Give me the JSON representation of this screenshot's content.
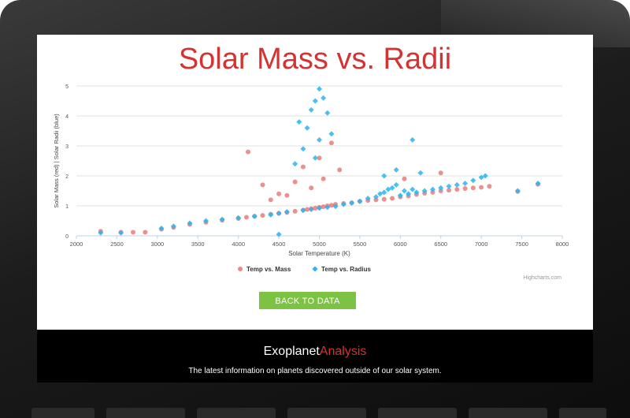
{
  "page": {
    "title": "Solar Mass vs. Radii",
    "back_label": "BACK TO DATA",
    "credits": "Highcharts.com"
  },
  "footer": {
    "brand_main": "Exoplanet",
    "brand_accent": "Analysis",
    "tagline": "The latest information on planets discovered outside of our solar system."
  },
  "colors": {
    "title": "#d53232",
    "mass_series": "#e86a6a",
    "radius_series": "#29b5f2",
    "button": "#7cc243"
  },
  "chart_data": {
    "type": "scatter",
    "title": "",
    "xlabel": "Solar Temperature (K)",
    "ylabel": "Solar Mass (red) | Solar Radii (blue)",
    "xlim": [
      2000,
      8000
    ],
    "ylim": [
      0,
      5
    ],
    "xticks": [
      2000,
      2500,
      3000,
      3500,
      4000,
      4500,
      5000,
      5500,
      6000,
      6500,
      7000,
      7500,
      8000
    ],
    "yticks": [
      0,
      1,
      2,
      3,
      4,
      5
    ],
    "grid": true,
    "legend": "bottom-center",
    "series": [
      {
        "name": "Temp vs. Mass",
        "color": "#e86a6a",
        "marker": "circle",
        "x": [
          2300,
          2550,
          2700,
          2850,
          3050,
          3200,
          3400,
          3600,
          3800,
          4000,
          4100,
          4200,
          4300,
          4400,
          4500,
          4600,
          4700,
          4800,
          4850,
          4900,
          4950,
          5000,
          5050,
          5100,
          5150,
          5200,
          5300,
          5400,
          5500,
          5600,
          5700,
          5800,
          5900,
          6000,
          6100,
          6200,
          6300,
          6400,
          6500,
          6600,
          6700,
          6800,
          6900,
          7000,
          7100,
          7450,
          7700,
          4120,
          4300,
          4500,
          4700,
          5000,
          5250,
          5050,
          4900,
          4800,
          4400,
          4600,
          5150,
          6500,
          6050
        ],
        "y": [
          0.15,
          0.12,
          0.12,
          0.12,
          0.22,
          0.28,
          0.38,
          0.45,
          0.52,
          0.58,
          0.62,
          0.65,
          0.68,
          0.72,
          0.75,
          0.78,
          0.82,
          0.86,
          0.88,
          0.9,
          0.92,
          0.95,
          0.97,
          1.0,
          1.02,
          1.05,
          1.08,
          1.1,
          1.15,
          1.18,
          1.2,
          1.22,
          1.25,
          1.3,
          1.33,
          1.38,
          1.42,
          1.45,
          1.5,
          1.52,
          1.55,
          1.58,
          1.6,
          1.62,
          1.65,
          1.48,
          1.72,
          2.8,
          1.7,
          1.4,
          1.8,
          2.6,
          2.2,
          1.9,
          1.6,
          2.3,
          1.2,
          1.35,
          3.1,
          2.1,
          1.9
        ]
      },
      {
        "name": "Temp vs. Radius",
        "color": "#29b5f2",
        "marker": "diamond",
        "x": [
          2300,
          2550,
          3050,
          3200,
          3400,
          3600,
          3800,
          4000,
          4200,
          4400,
          4500,
          4600,
          4800,
          4900,
          5000,
          5100,
          5200,
          5300,
          5400,
          5500,
          5600,
          5700,
          5750,
          5800,
          5850,
          5900,
          5950,
          6000,
          6050,
          6100,
          6150,
          6200,
          6300,
          6400,
          6500,
          6600,
          6700,
          6800,
          6900,
          7000,
          7050,
          7450,
          7700,
          4500,
          4700,
          4800,
          4850,
          4900,
          4950,
          5000,
          5050,
          5100,
          4750,
          5000,
          4950,
          5150,
          6150,
          5950,
          5800,
          6250
        ],
        "y": [
          0.1,
          0.1,
          0.25,
          0.32,
          0.42,
          0.5,
          0.55,
          0.6,
          0.65,
          0.7,
          0.75,
          0.8,
          0.85,
          0.88,
          0.92,
          0.95,
          0.98,
          1.05,
          1.1,
          1.15,
          1.25,
          1.3,
          1.4,
          1.45,
          1.55,
          1.6,
          1.7,
          1.35,
          1.5,
          1.4,
          1.55,
          1.45,
          1.5,
          1.55,
          1.6,
          1.65,
          1.7,
          1.75,
          1.85,
          1.95,
          2.0,
          1.5,
          1.75,
          0.05,
          2.4,
          2.9,
          3.6,
          4.2,
          4.5,
          4.9,
          4.6,
          4.1,
          3.8,
          3.2,
          2.6,
          3.4,
          3.2,
          2.2,
          2.0,
          2.1
        ]
      }
    ]
  }
}
